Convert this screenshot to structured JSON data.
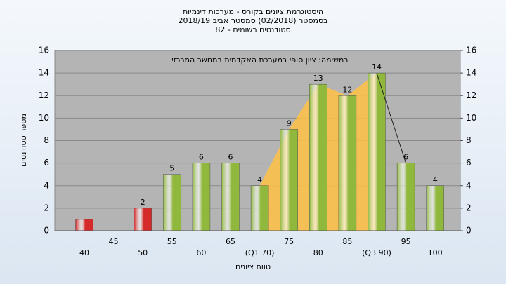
{
  "chart_data": {
    "type": "bar",
    "title": "היסטוגרמת ציונים בקורס - מערכות דינמיות",
    "subtitle": "בסמסטר (02/2018) סמסטר אביב 2018/19",
    "subtitle2": "סטודנטים רשומים - 82",
    "annotation": "במשימה: ציון סופי במערכת האקדמית במחשב המרכזי",
    "x_label": "טווח ציונים",
    "y_label": "מספר סטודנטים",
    "categories": [
      "40",
      "45",
      "50",
      "55",
      "60",
      "65",
      "(Q1 70)",
      "75",
      "80",
      "85",
      "(Q3 90)",
      "95",
      "100"
    ],
    "values": [
      1,
      0,
      2,
      5,
      6,
      6,
      4,
      9,
      13,
      12,
      14,
      6,
      4
    ],
    "value_labels": [
      null,
      null,
      "2",
      "5",
      "6",
      "6",
      "4",
      "9",
      "13",
      "12",
      "14",
      "6",
      "4"
    ],
    "colors": [
      "#d42a2a",
      "#d42a2a",
      "#d42a2a",
      "#8fb83c",
      "#8fb83c",
      "#8fb83c",
      "#8fb83c",
      "#8fb83c",
      "#8fb83c",
      "#8fb83c",
      "#8fb83c",
      "#8fb83c",
      "#8fb83c"
    ],
    "area": {
      "color": "#ffc245",
      "values": [
        null,
        null,
        null,
        null,
        null,
        null,
        4,
        9,
        13,
        12,
        14,
        null,
        null
      ]
    },
    "line": {
      "color": "#222222",
      "values": [
        null,
        null,
        null,
        null,
        null,
        null,
        null,
        null,
        null,
        null,
        14,
        6,
        null
      ]
    },
    "ylim": [
      0,
      16
    ],
    "yticks": [
      0,
      2,
      4,
      6,
      8,
      10,
      12,
      14,
      16
    ],
    "y2lim": [
      0,
      16
    ],
    "y2ticks": [
      0,
      2,
      4,
      6,
      8,
      10,
      12,
      14,
      16
    ],
    "grid": true
  }
}
